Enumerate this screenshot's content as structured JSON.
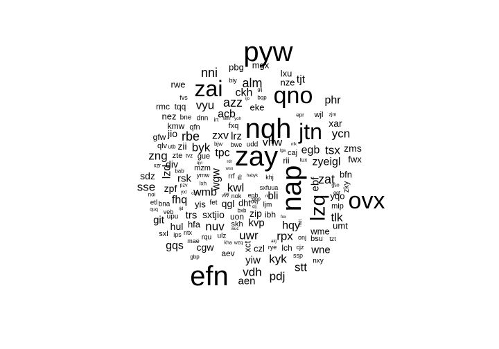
{
  "cloud": {
    "color": "#000000",
    "background": "#ffffff",
    "words": [
      {
        "text": "pyw",
        "weight": 40
      },
      {
        "text": "zay",
        "weight": 40
      },
      {
        "text": "nqh",
        "weight": 40
      },
      {
        "text": "efn",
        "weight": 40
      },
      {
        "text": "nap",
        "weight": 40
      },
      {
        "text": "ovx",
        "weight": 34
      },
      {
        "text": "qno",
        "weight": 34
      },
      {
        "text": "zai",
        "weight": 32
      },
      {
        "text": "jtn",
        "weight": 32
      },
      {
        "text": "lzq",
        "weight": 30
      },
      {
        "text": "mgx",
        "weight": 13
      },
      {
        "text": "pbg",
        "weight": 13
      },
      {
        "text": "nni",
        "weight": 18
      },
      {
        "text": "lxu",
        "weight": 13
      },
      {
        "text": "nze",
        "weight": 13
      },
      {
        "text": "tjt",
        "weight": 16
      },
      {
        "text": "biy",
        "weight": 9
      },
      {
        "text": "alm",
        "weight": 18
      },
      {
        "text": "rwe",
        "weight": 13
      },
      {
        "text": "glj",
        "weight": 7
      },
      {
        "text": "bqp",
        "weight": 8
      },
      {
        "text": "ckh",
        "weight": 16
      },
      {
        "text": "fvs",
        "weight": 9
      },
      {
        "text": "ijo",
        "weight": 6
      },
      {
        "text": "phr",
        "weight": 16
      },
      {
        "text": "rmc",
        "weight": 12
      },
      {
        "text": "tqq",
        "weight": 12
      },
      {
        "text": "vyu",
        "weight": 17
      },
      {
        "text": "azz",
        "weight": 18
      },
      {
        "text": "eke",
        "weight": 13
      },
      {
        "text": "acb",
        "weight": 16
      },
      {
        "text": "epr",
        "weight": 8
      },
      {
        "text": "wjl",
        "weight": 11
      },
      {
        "text": "zjm",
        "weight": 7
      },
      {
        "text": "nez",
        "weight": 13
      },
      {
        "text": "bne",
        "weight": 10
      },
      {
        "text": "dnn",
        "weight": 10
      },
      {
        "text": "irt",
        "weight": 8
      },
      {
        "text": "xkm",
        "weight": 6
      },
      {
        "text": "yoh",
        "weight": 6
      },
      {
        "text": "xar",
        "weight": 14
      },
      {
        "text": "kmw",
        "weight": 12
      },
      {
        "text": "qfn",
        "weight": 11
      },
      {
        "text": "fxq",
        "weight": 11
      },
      {
        "text": "ycn",
        "weight": 17
      },
      {
        "text": "jio",
        "weight": 14
      },
      {
        "text": "rbe",
        "weight": 18
      },
      {
        "text": "gfw",
        "weight": 12
      },
      {
        "text": "lrz",
        "weight": 15
      },
      {
        "text": "qlv",
        "weight": 11
      },
      {
        "text": "utb",
        "weight": 8
      },
      {
        "text": "zii",
        "weight": 14
      },
      {
        "text": "byk",
        "weight": 17
      },
      {
        "text": "bjw",
        "weight": 8
      },
      {
        "text": "bwe",
        "weight": 9
      },
      {
        "text": "udd",
        "weight": 10
      },
      {
        "text": "vhw",
        "weight": 16
      },
      {
        "text": "nfk",
        "weight": 6
      },
      {
        "text": "egb",
        "weight": 16
      },
      {
        "text": "tsx",
        "weight": 17
      },
      {
        "text": "zms",
        "weight": 14
      },
      {
        "text": "zng",
        "weight": 17
      },
      {
        "text": "zte",
        "weight": 11
      },
      {
        "text": "tvz",
        "weight": 8
      },
      {
        "text": "gue",
        "weight": 11
      },
      {
        "text": "tpc",
        "weight": 16
      },
      {
        "text": "zxv",
        "weight": 16
      },
      {
        "text": "lga",
        "weight": 6
      },
      {
        "text": "caj",
        "weight": 11
      },
      {
        "text": "rii",
        "weight": 12
      },
      {
        "text": "tux",
        "weight": 8
      },
      {
        "text": "zyeigl",
        "weight": 16
      },
      {
        "text": "fwx",
        "weight": 13
      },
      {
        "text": "div",
        "weight": 14
      },
      {
        "text": "xzr",
        "weight": 8
      },
      {
        "text": "qyi",
        "weight": 6
      },
      {
        "text": "mzm",
        "weight": 11
      },
      {
        "text": "rdr",
        "weight": 6
      },
      {
        "text": "sdz",
        "weight": 14
      },
      {
        "text": "lzd",
        "weight": 16
      },
      {
        "text": "bab",
        "weight": 8
      },
      {
        "text": "ymw",
        "weight": 9
      },
      {
        "text": "wso",
        "weight": 6
      },
      {
        "text": "wgw",
        "weight": 16
      },
      {
        "text": "rrf",
        "weight": 10
      },
      {
        "text": "ffb",
        "weight": 7
      },
      {
        "text": "habyk",
        "weight": 6
      },
      {
        "text": "khj",
        "weight": 9
      },
      {
        "text": "zat",
        "weight": 18
      },
      {
        "text": "bfn",
        "weight": 13
      },
      {
        "text": "rsk",
        "weight": 15
      },
      {
        "text": "sse",
        "weight": 17
      },
      {
        "text": "pzv",
        "weight": 7
      },
      {
        "text": "lxh",
        "weight": 8
      },
      {
        "text": "kwl",
        "weight": 17
      },
      {
        "text": "sxfuua",
        "weight": 9
      },
      {
        "text": "ebf",
        "weight": 15
      },
      {
        "text": "gso",
        "weight": 7
      },
      {
        "text": "zky",
        "weight": 11
      },
      {
        "text": "zpf",
        "weight": 14
      },
      {
        "text": "yxl",
        "weight": 7
      },
      {
        "text": "ozh",
        "weight": 6
      },
      {
        "text": "wmb",
        "weight": 16
      },
      {
        "text": "fet",
        "weight": 10
      },
      {
        "text": "xor",
        "weight": 6
      },
      {
        "text": "ggt",
        "weight": 7
      },
      {
        "text": "epb",
        "weight": 9
      },
      {
        "text": "bli",
        "weight": 15
      },
      {
        "text": "yqo",
        "weight": 13
      },
      {
        "text": "noi",
        "weight": 8
      },
      {
        "text": "fhq",
        "weight": 16
      },
      {
        "text": "vvv",
        "weight": 7
      },
      {
        "text": "nok",
        "weight": 9
      },
      {
        "text": "ovj",
        "weight": 8
      },
      {
        "text": "mip",
        "weight": 11
      },
      {
        "text": "etl",
        "weight": 10
      },
      {
        "text": "bna",
        "weight": 10
      },
      {
        "text": "yis",
        "weight": 13
      },
      {
        "text": "qgl",
        "weight": 14
      },
      {
        "text": "dht",
        "weight": 13
      },
      {
        "text": "qlj",
        "weight": 6
      },
      {
        "text": "ljm",
        "weight": 10
      },
      {
        "text": "quq",
        "weight": 7
      },
      {
        "text": "rjd",
        "weight": 6
      },
      {
        "text": "bxb",
        "weight": 8
      },
      {
        "text": "veb",
        "weight": 9
      },
      {
        "text": "git",
        "weight": 15
      },
      {
        "text": "upu",
        "weight": 10
      },
      {
        "text": "trs",
        "weight": 15
      },
      {
        "text": "sxtjio",
        "weight": 14
      },
      {
        "text": "uon",
        "weight": 12
      },
      {
        "text": "zip",
        "weight": 14
      },
      {
        "text": "ibh",
        "weight": 12
      },
      {
        "text": "tlk",
        "weight": 17
      },
      {
        "text": "hul",
        "weight": 14
      },
      {
        "text": "hfa",
        "weight": 13
      },
      {
        "text": "skh",
        "weight": 11
      },
      {
        "text": "kvp",
        "weight": 15
      },
      {
        "text": "fox",
        "weight": 6
      },
      {
        "text": "hqy",
        "weight": 16
      },
      {
        "text": "umt",
        "weight": 13
      },
      {
        "text": "sxl",
        "weight": 11
      },
      {
        "text": "ips",
        "weight": 9
      },
      {
        "text": "nuv",
        "weight": 17
      },
      {
        "text": "ntx",
        "weight": 9
      },
      {
        "text": "rqu",
        "weight": 10
      },
      {
        "text": "ulz",
        "weight": 10
      },
      {
        "text": "wuc",
        "weight": 6
      },
      {
        "text": "uwr",
        "weight": 17
      },
      {
        "text": "mdt",
        "weight": 6
      },
      {
        "text": "wme",
        "weight": 13
      },
      {
        "text": "gqs",
        "weight": 16
      },
      {
        "text": "mae",
        "weight": 9
      },
      {
        "text": "kha",
        "weight": 7
      },
      {
        "text": "wzq",
        "weight": 7
      },
      {
        "text": "akj",
        "weight": 6
      },
      {
        "text": "onj",
        "weight": 9
      },
      {
        "text": "bsu",
        "weight": 11
      },
      {
        "text": "tzt",
        "weight": 9
      },
      {
        "text": "cgw",
        "weight": 14
      },
      {
        "text": "czl",
        "weight": 13
      },
      {
        "text": "rye",
        "weight": 9
      },
      {
        "text": "lch",
        "weight": 12
      },
      {
        "text": "cjz",
        "weight": 9
      },
      {
        "text": "wne",
        "weight": 15
      },
      {
        "text": "gbp",
        "weight": 8
      },
      {
        "text": "aev",
        "weight": 12
      },
      {
        "text": "ssp",
        "weight": 9
      },
      {
        "text": "nxy",
        "weight": 10
      },
      {
        "text": "yiw",
        "weight": 15
      },
      {
        "text": "kyk",
        "weight": 17
      },
      {
        "text": "stt",
        "weight": 17
      },
      {
        "text": "vdh",
        "weight": 17
      },
      {
        "text": "pdj",
        "weight": 17
      },
      {
        "text": "aen",
        "weight": 15
      },
      {
        "text": "rpx",
        "weight": 17
      },
      {
        "text": "xct",
        "weight": 13
      },
      {
        "text": "dpp",
        "weight": 7
      },
      {
        "text": "rki",
        "weight": 6
      }
    ]
  }
}
